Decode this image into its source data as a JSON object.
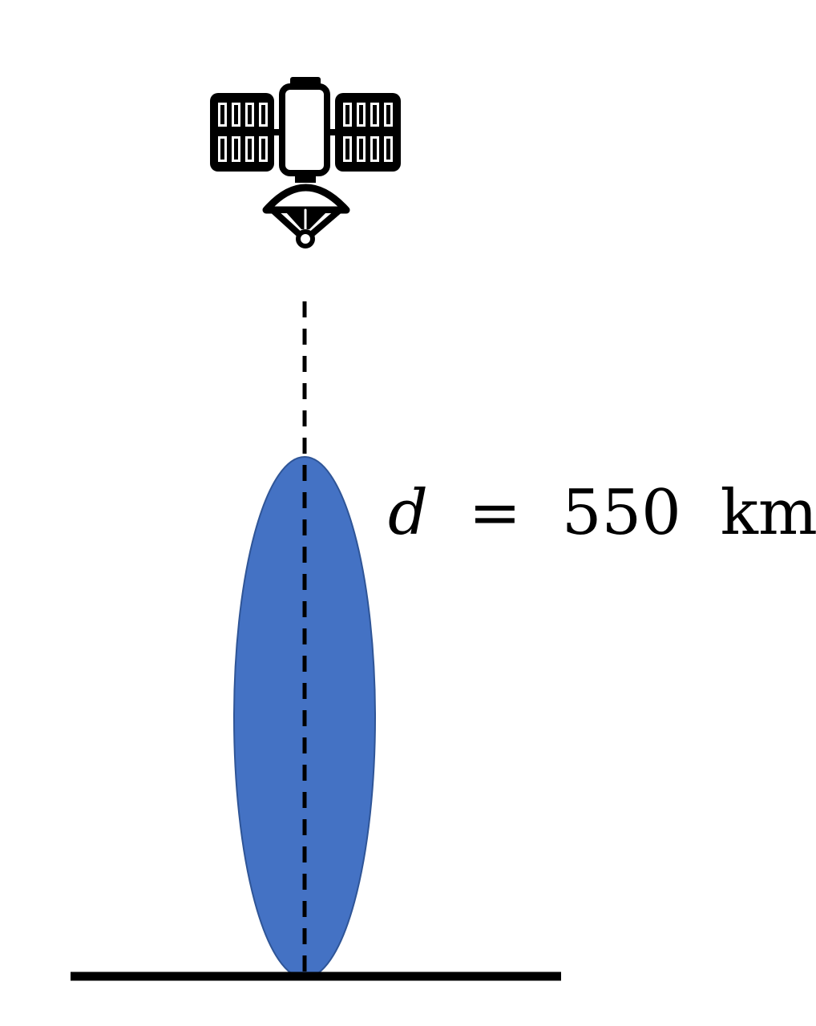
{
  "diagram": {
    "distance_label": {
      "variable": "d",
      "equals": "=",
      "value": "550",
      "unit": "km"
    },
    "icons": {
      "satellite": "satellite-icon"
    },
    "colors": {
      "beam_fill": "#4472C4",
      "beam_stroke": "#2F5597",
      "line": "#000000",
      "background": "#FFFFFF"
    }
  }
}
